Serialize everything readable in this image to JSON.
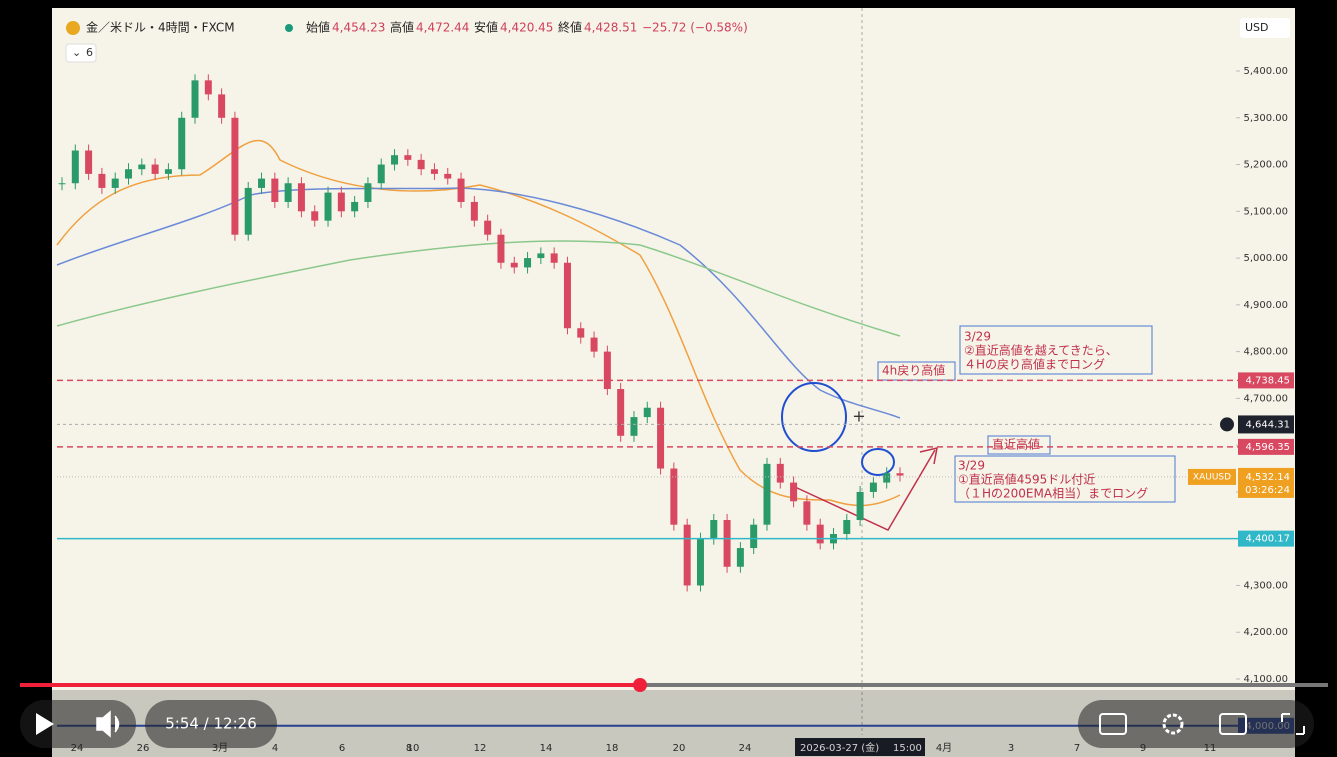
{
  "header": {
    "symbol": "金／米ドル・4時間・FXCM",
    "ohlc": [
      {
        "label": "始値",
        "value": "4,454.23"
      },
      {
        "label": "高値",
        "value": "4,472.44"
      },
      {
        "label": "安値",
        "value": "4,420.45"
      },
      {
        "label": "終値",
        "value": "4,428.51"
      }
    ],
    "change": "−25.72 (−0.58%)",
    "indicators": "6",
    "currency": "USD"
  },
  "price_axis": {
    "ticks": [
      {
        "value": 5400,
        "label": "5,400.00"
      },
      {
        "value": 5300,
        "label": "5,300.00"
      },
      {
        "value": 5200,
        "label": "5,200.00"
      },
      {
        "value": 5100,
        "label": "5,100.00"
      },
      {
        "value": 5000,
        "label": "5,000.00"
      },
      {
        "value": 4900,
        "label": "4,900.00"
      },
      {
        "value": 4800,
        "label": "4,800.00"
      },
      {
        "value": 4700,
        "label": "4,700.00"
      },
      {
        "value": 4600,
        "label": "4,600.00"
      },
      {
        "value": 4500,
        "label": "4,500.00"
      },
      {
        "value": 4400,
        "label": "4,400.00"
      },
      {
        "value": 4300,
        "label": "4,300.00"
      },
      {
        "value": 4200,
        "label": "4,200.00"
      },
      {
        "value": 4100,
        "label": "4,100.00"
      }
    ]
  },
  "time_axis": {
    "labels": [
      "24",
      "26",
      "3月",
      "4",
      "6",
      "8",
      "10",
      "12",
      "14",
      "18",
      "20",
      "24",
      "4月",
      "3",
      "7",
      "9",
      "11"
    ],
    "crosshair": "2026-03-27 (金)",
    "crosshair_time": "15:00"
  },
  "candles": {
    "closes": [
      5160,
      5230,
      5180,
      5150,
      5170,
      5190,
      5200,
      5180,
      5190,
      5300,
      5380,
      5350,
      5300,
      5050,
      5150,
      5170,
      5120,
      5160,
      5100,
      5080,
      5140,
      5100,
      5120,
      5160,
      5200,
      5220,
      5210,
      5190,
      5180,
      5170,
      5120,
      5080,
      5050,
      4990,
      4980,
      5000,
      5010,
      4990,
      4850,
      4830,
      4800,
      4720,
      4620,
      4660,
      4680,
      4550,
      4430,
      4300,
      4400,
      4440,
      4340,
      4380,
      4430,
      4560,
      4520,
      4480,
      4430,
      4390,
      4410,
      4440,
      4500,
      4520,
      4540,
      4535
    ]
  },
  "levels": [
    {
      "value": 4738.45,
      "label": "4,738.45"
    },
    {
      "value": 4596.35,
      "label": "4,596.35"
    },
    {
      "value": 4400.17,
      "label": "4,400.17"
    }
  ],
  "crosshair_price": {
    "value": 4644.31,
    "label": "4,644.31"
  },
  "last_price": {
    "symbol": "XAUUSD",
    "value": 4532.14,
    "label": "4,532.14",
    "countdown": "03:26:24"
  },
  "bottom_line": {
    "value": 4000,
    "label": "4,000.00"
  },
  "annotations": {
    "upper": [
      "3/29",
      "②直近高値を越えてきたら、",
      "４Hの戻り高値までロング"
    ],
    "h4_high": "4h戻り高値",
    "recent_high": "直近高値",
    "lower": [
      "3/29",
      "①直近高値4595ドル付近",
      "（１Hの200EMA相当）までロング"
    ]
  },
  "player": {
    "time": "5:54 / 12:26"
  }
}
